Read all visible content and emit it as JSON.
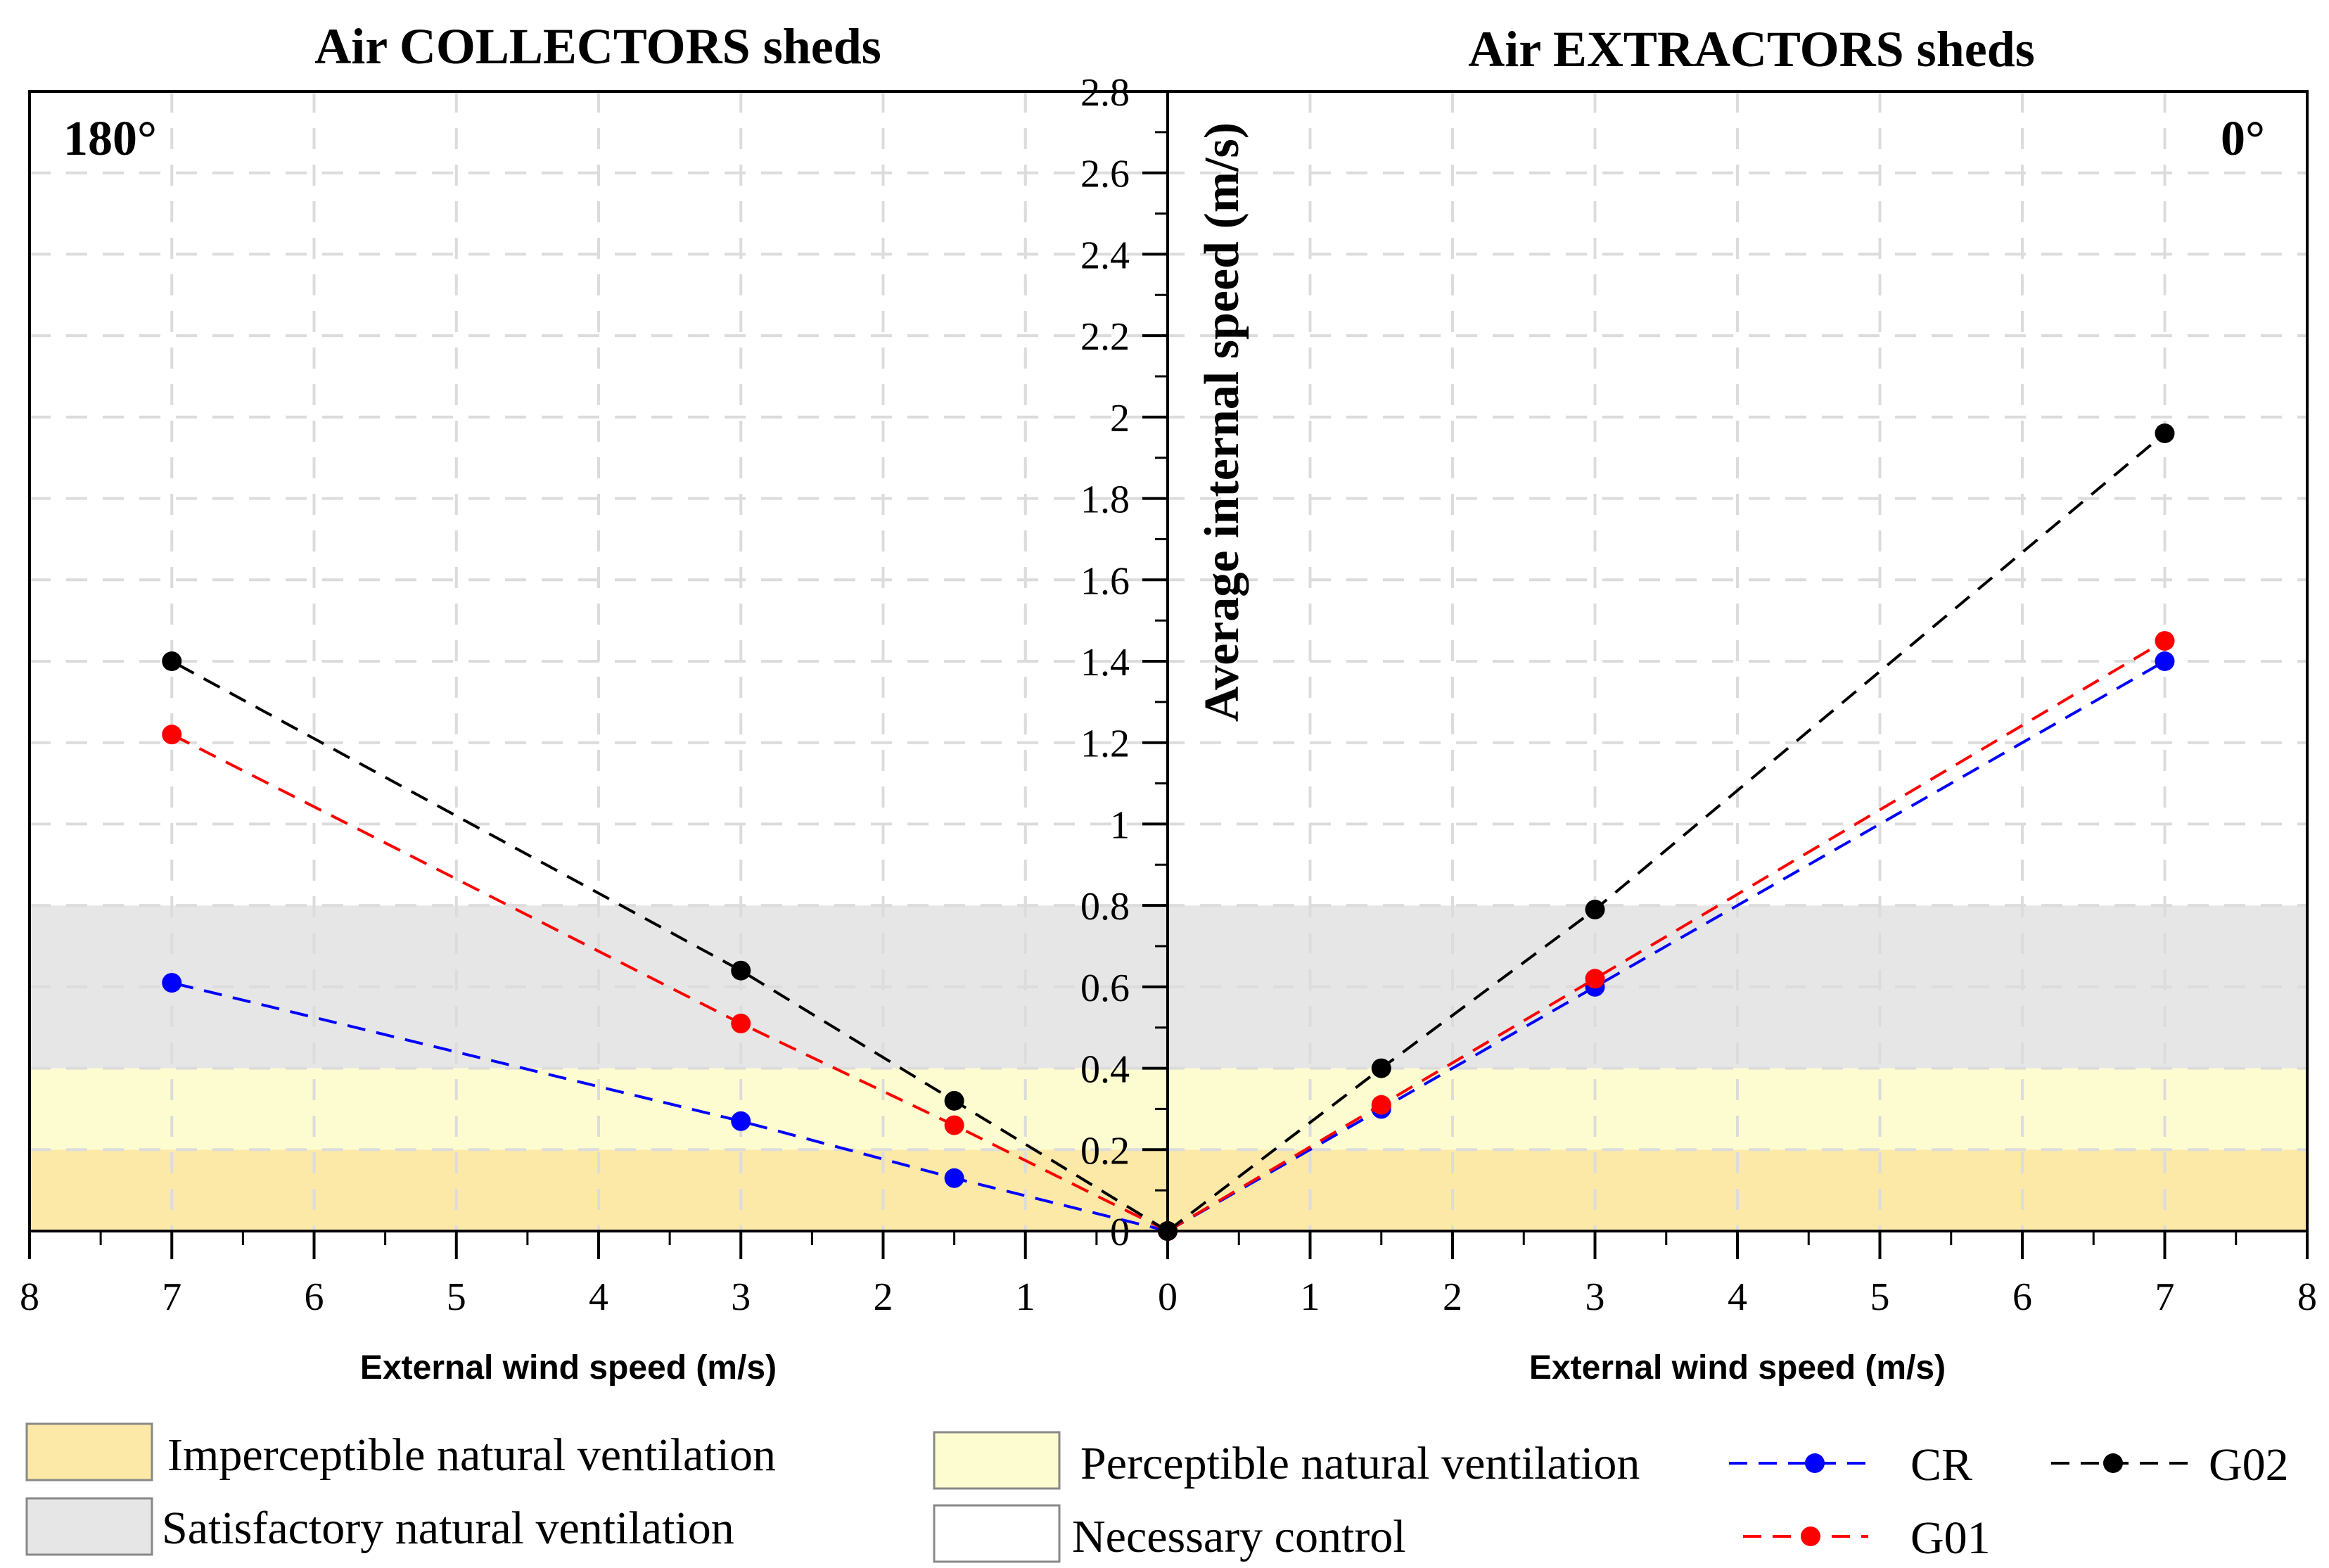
{
  "chart_data": {
    "type": "line",
    "ylabel": "Average internal speed (m/s)",
    "ylim": [
      0,
      2.8
    ],
    "yticks": [
      "0",
      "0.2",
      "0.4",
      "0.6",
      "0.8",
      "1",
      "1.2",
      "1.4",
      "1.6",
      "1.8",
      "2",
      "2.2",
      "2.4",
      "2.6",
      "2.8"
    ],
    "bands": [
      {
        "name": "Imperceptible natural ventilation",
        "from": 0,
        "to": 0.2,
        "color": "#fce9a8"
      },
      {
        "name": "Perceptible natural ventilation",
        "from": 0.2,
        "to": 0.4,
        "color": "#fdfcd0"
      },
      {
        "name": "Satisfactory natural ventilation",
        "from": 0.4,
        "to": 0.8,
        "color": "#e6e6e6"
      },
      {
        "name": "Necessary control",
        "from": 0.8,
        "to": 2.8,
        "color": "#ffffff"
      }
    ],
    "panels": [
      {
        "title": "Air COLLECTORS sheds",
        "angle": "180°",
        "xlabel": "External wind speed (m/s)",
        "xlim": [
          0,
          8
        ],
        "reversed": true,
        "xticks": [
          "8",
          "7",
          "6",
          "5",
          "4",
          "3",
          "2",
          "1",
          "0"
        ],
        "series": [
          {
            "name": "CR",
            "color": "#0000ff",
            "x": [
              0,
              1.5,
              3,
              7
            ],
            "y": [
              0,
              0.13,
              0.27,
              0.61
            ]
          },
          {
            "name": "G01",
            "color": "#ff0000",
            "x": [
              0,
              1.5,
              3,
              7
            ],
            "y": [
              0,
              0.26,
              0.51,
              1.22
            ]
          },
          {
            "name": "G02",
            "color": "#000000",
            "x": [
              0,
              1.5,
              3,
              7
            ],
            "y": [
              0,
              0.32,
              0.64,
              1.4
            ]
          }
        ]
      },
      {
        "title": "Air EXTRACTORS sheds",
        "angle": "0°",
        "xlabel": "External wind speed (m/s)",
        "xlim": [
          0,
          8
        ],
        "reversed": false,
        "xticks": [
          "0",
          "1",
          "2",
          "3",
          "4",
          "5",
          "6",
          "7",
          "8"
        ],
        "series": [
          {
            "name": "CR",
            "color": "#0000ff",
            "x": [
              0,
              1.5,
              3,
              7
            ],
            "y": [
              0,
              0.3,
              0.6,
              1.4
            ]
          },
          {
            "name": "G01",
            "color": "#ff0000",
            "x": [
              0,
              1.5,
              3,
              7
            ],
            "y": [
              0,
              0.31,
              0.62,
              1.45
            ]
          },
          {
            "name": "G02",
            "color": "#000000",
            "x": [
              0,
              1.5,
              3,
              7
            ],
            "y": [
              0,
              0.4,
              0.79,
              1.96
            ]
          }
        ]
      }
    ],
    "legend": {
      "bands": [
        "Imperceptible natural ventilation",
        "Satisfactory natural ventilation",
        "Perceptible natural ventilation",
        "Necessary control"
      ],
      "series": [
        "CR",
        "G01",
        "G02"
      ],
      "position": "bottom"
    }
  }
}
